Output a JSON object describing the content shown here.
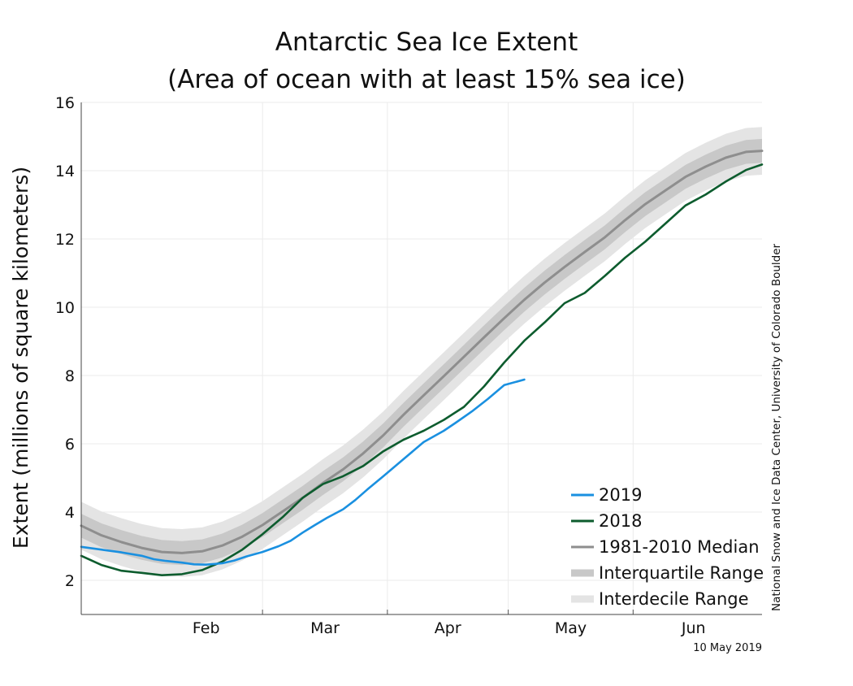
{
  "chart_data": {
    "type": "line",
    "title": "Antarctic Sea Ice Extent",
    "subtitle": "(Area of ocean with at least 15% sea ice)",
    "ylabel": "Extent (millions of square kilometers)",
    "xlabel": "",
    "ylim": [
      1,
      16
    ],
    "yticks": [
      2,
      4,
      6,
      8,
      10,
      12,
      14,
      16
    ],
    "xlim": [
      15,
      184
    ],
    "months": [
      {
        "label": "Feb",
        "start": 32,
        "end": 60
      },
      {
        "label": "Mar",
        "start": 60,
        "end": 91
      },
      {
        "label": "Apr",
        "start": 91,
        "end": 121
      },
      {
        "label": "May",
        "start": 121,
        "end": 152
      },
      {
        "label": "Jun",
        "start": 152,
        "end": 182
      }
    ],
    "grid": true,
    "legend_position": "bottom-right",
    "series": [
      {
        "name": "2019",
        "color": "#1a90e0",
        "x": [
          15,
          20,
          25,
          30,
          33,
          36,
          40,
          43,
          46,
          50,
          53,
          56,
          60,
          64,
          67,
          70,
          73,
          76,
          80,
          83,
          86,
          90,
          95,
          100,
          105,
          108,
          112,
          116,
          120,
          125
        ],
        "values": [
          2.98,
          2.9,
          2.82,
          2.72,
          2.62,
          2.57,
          2.52,
          2.47,
          2.46,
          2.5,
          2.58,
          2.7,
          2.83,
          3.0,
          3.16,
          3.4,
          3.62,
          3.83,
          4.08,
          4.35,
          4.66,
          5.05,
          5.55,
          6.05,
          6.38,
          6.62,
          6.95,
          7.32,
          7.72,
          7.88
        ]
      },
      {
        "name": "2018",
        "color": "#0d5c2e",
        "x": [
          15,
          20,
          25,
          30,
          35,
          40,
          45,
          50,
          55,
          60,
          65,
          70,
          75,
          80,
          85,
          90,
          95,
          100,
          105,
          110,
          115,
          120,
          125,
          130,
          135,
          140,
          145,
          150,
          155,
          160,
          165,
          170,
          175,
          180,
          184
        ],
        "values": [
          2.72,
          2.45,
          2.28,
          2.22,
          2.15,
          2.18,
          2.3,
          2.55,
          2.9,
          3.35,
          3.85,
          4.42,
          4.82,
          5.05,
          5.35,
          5.78,
          6.12,
          6.38,
          6.7,
          7.08,
          7.68,
          8.38,
          9.02,
          9.55,
          10.12,
          10.42,
          10.92,
          11.45,
          11.92,
          12.45,
          12.98,
          13.3,
          13.68,
          14.02,
          14.18
        ]
      },
      {
        "name": "1981-2010 Median",
        "color": "#8e8e8e",
        "x": [
          15,
          20,
          25,
          30,
          35,
          40,
          45,
          50,
          55,
          60,
          65,
          70,
          75,
          80,
          85,
          90,
          95,
          100,
          105,
          110,
          115,
          120,
          125,
          130,
          135,
          140,
          145,
          150,
          155,
          160,
          165,
          170,
          175,
          180,
          184
        ],
        "values": [
          3.6,
          3.32,
          3.12,
          2.95,
          2.83,
          2.8,
          2.85,
          3.02,
          3.28,
          3.62,
          4.02,
          4.42,
          4.85,
          5.25,
          5.72,
          6.25,
          6.85,
          7.42,
          7.98,
          8.55,
          9.12,
          9.68,
          10.22,
          10.72,
          11.18,
          11.62,
          12.05,
          12.55,
          13.02,
          13.42,
          13.82,
          14.12,
          14.38,
          14.55,
          14.58
        ]
      }
    ],
    "bands": [
      {
        "name": "Interquartile Range",
        "color": "#c8c8c8",
        "offset": 0.35
      },
      {
        "name": "Interdecile Range",
        "color": "#e4e4e4",
        "offset": 0.7
      }
    ],
    "legend": [
      "2019",
      "2018",
      "1981-2010 Median",
      "Interquartile Range",
      "Interdecile Range"
    ],
    "credit": "National Snow and Ice Data Center, University of Colorado Boulder",
    "date_stamp": "10 May 2019"
  }
}
